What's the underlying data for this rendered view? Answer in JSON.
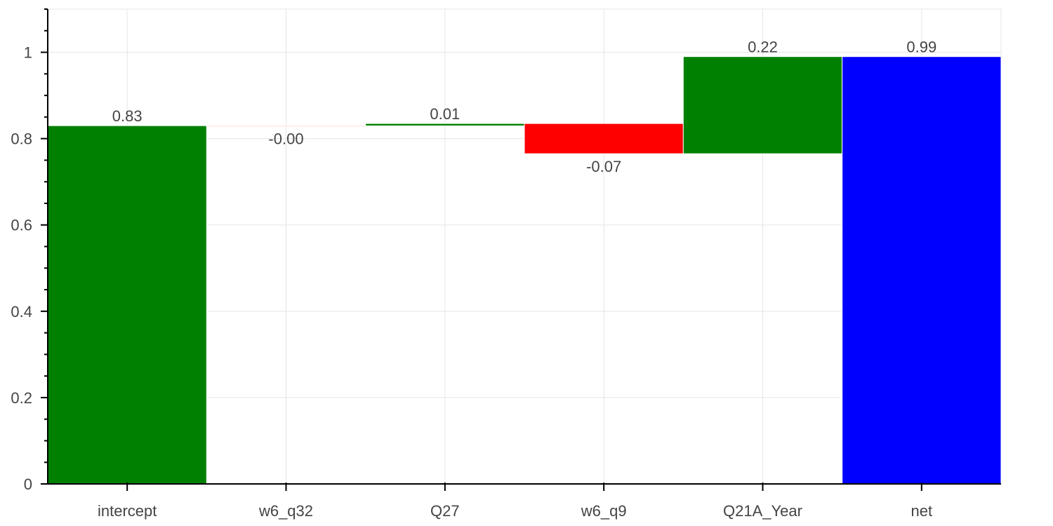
{
  "chart_data": {
    "type": "bar",
    "subtype": "waterfall",
    "title": "",
    "xlabel": "",
    "ylabel": "",
    "categories": [
      "intercept",
      "w6_q32",
      "Q27",
      "w6_q9",
      "Q21A_Year",
      "net"
    ],
    "steps": [
      {
        "category": "intercept",
        "start": 0,
        "end": 0.83,
        "label": "0.83",
        "color": "#008000"
      },
      {
        "category": "w6_q32",
        "start": 0.83,
        "end": 0.8295,
        "label": "-0.00",
        "color": "#ffb3b3"
      },
      {
        "category": "Q27",
        "start": 0.8295,
        "end": 0.835,
        "label": "0.01",
        "color": "#008000"
      },
      {
        "category": "w6_q9",
        "start": 0.835,
        "end": 0.765,
        "label": "-0.07",
        "color": "#ff0000"
      },
      {
        "category": "Q21A_Year",
        "start": 0.765,
        "end": 0.99,
        "label": "0.22",
        "color": "#008000"
      },
      {
        "category": "net",
        "start": 0,
        "end": 0.99,
        "label": "0.99",
        "color": "#0000ff"
      }
    ],
    "ylim": [
      0,
      1.1
    ],
    "yticks": [
      0,
      0.2,
      0.4,
      0.6,
      0.8,
      1
    ],
    "ytick_labels": [
      "0",
      "0.2",
      "0.4",
      "0.6",
      "0.8",
      "1"
    ],
    "grid": true,
    "legend": "none"
  }
}
